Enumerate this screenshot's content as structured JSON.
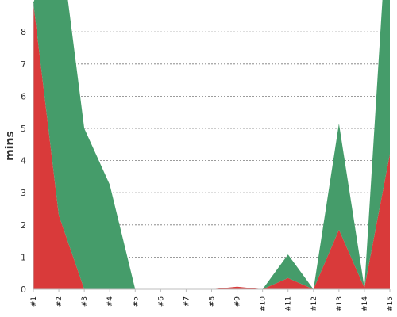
{
  "chart_data": {
    "type": "area",
    "ylabel": "mins",
    "ylim": [
      0,
      8.9
    ],
    "yticks": [
      0,
      1,
      2,
      3,
      4,
      5,
      6,
      7,
      8
    ],
    "grid": true,
    "categories": [
      "#1",
      "#2",
      "#3",
      "#4",
      "#5",
      "#6",
      "#7",
      "#8",
      "#9",
      "#10",
      "#11",
      "#12",
      "#13",
      "#14",
      "#15"
    ],
    "series": [
      {
        "color": "#d93a3a",
        "values": [
          8.9,
          2.3,
          0,
          0,
          0,
          0,
          0,
          0,
          0.08,
          0,
          0.35,
          0,
          1.85,
          0.05,
          4.2
        ]
      },
      {
        "color": "#459c6a",
        "values": [
          0,
          8.9,
          5.0,
          3.25,
          0,
          0,
          0,
          0,
          0,
          0,
          0.73,
          0,
          3.3,
          0,
          8.5
        ]
      }
    ]
  }
}
